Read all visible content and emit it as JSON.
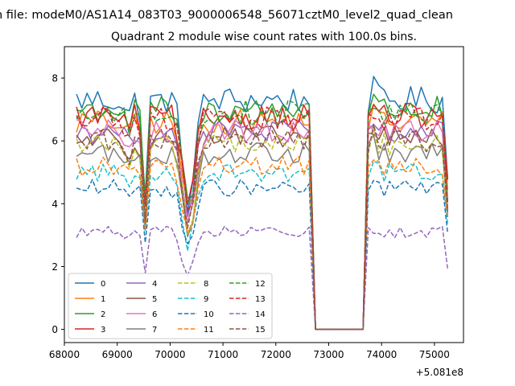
{
  "suptitle": "n file: modeM0/AS1A14_083T03_9000006548_56071cztM0_level2_quad_clean",
  "chart_data": {
    "type": "line",
    "title": "Quadrant 2 module wise count rates with 100.0s bins.",
    "xlabel": "",
    "ylabel": "",
    "x_offset_label": "+5.081e8",
    "xlim": [
      68000,
      75550
    ],
    "ylim": [
      -0.42,
      9.0
    ],
    "x_ticks": [
      68000,
      69000,
      70000,
      71000,
      72000,
      73000,
      74000,
      75000
    ],
    "x_tick_labels": [
      "68000",
      "69000",
      "70000",
      "71000",
      "72000",
      "73000",
      "74000",
      "75000"
    ],
    "y_ticks": [
      0,
      2,
      4,
      6,
      8
    ],
    "y_tick_labels": [
      "0",
      "2",
      "4",
      "6",
      "8"
    ],
    "legend_position": "lower-left",
    "legend_columns": 4,
    "segments": [
      [
        68230,
        72650
      ],
      [
        72750,
        73650
      ],
      [
        73750,
        75250
      ]
    ],
    "series": [
      {
        "name": "0",
        "color": "#1f77b4",
        "dash": "solid",
        "mean": 7.3,
        "gap_value": 0
      },
      {
        "name": "1",
        "color": "#ff7f0e",
        "dash": "solid",
        "mean": 6.6,
        "gap_value": 0
      },
      {
        "name": "2",
        "color": "#2ca02c",
        "dash": "solid",
        "mean": 7.0,
        "gap_value": 0
      },
      {
        "name": "3",
        "color": "#d62728",
        "dash": "solid",
        "mean": 6.8,
        "gap_value": 0
      },
      {
        "name": "4",
        "color": "#9467bd",
        "dash": "solid",
        "mean": 6.3,
        "gap_value": 0
      },
      {
        "name": "5",
        "color": "#8c564b",
        "dash": "solid",
        "mean": 6.1,
        "gap_value": 0
      },
      {
        "name": "6",
        "color": "#e377c2",
        "dash": "solid",
        "mean": 6.3,
        "gap_value": 0
      },
      {
        "name": "7",
        "color": "#7f7f7f",
        "dash": "solid",
        "mean": 5.6,
        "gap_value": 0
      },
      {
        "name": "8",
        "color": "#bcbd22",
        "dash": "dashed",
        "mean": 5.9,
        "gap_value": 0
      },
      {
        "name": "9",
        "color": "#17becf",
        "dash": "dashed",
        "mean": 5.0,
        "gap_value": 0
      },
      {
        "name": "10",
        "color": "#1f77b4",
        "dash": "dashed",
        "mean": 4.5,
        "gap_value": 0
      },
      {
        "name": "11",
        "color": "#ff7f0e",
        "dash": "dashed",
        "mean": 5.2,
        "gap_value": 0
      },
      {
        "name": "12",
        "color": "#2ca02c",
        "dash": "dashed",
        "mean": 6.9,
        "gap_value": 0
      },
      {
        "name": "13",
        "color": "#d62728",
        "dash": "dashed",
        "mean": 6.7,
        "gap_value": 0
      },
      {
        "name": "14",
        "color": "#9467bd",
        "dash": "dashed",
        "mean": 3.1,
        "gap_value": 0
      },
      {
        "name": "15",
        "color": "#8c564b",
        "dash": "dashed",
        "mean": 6.0,
        "gap_value": 0
      }
    ]
  }
}
